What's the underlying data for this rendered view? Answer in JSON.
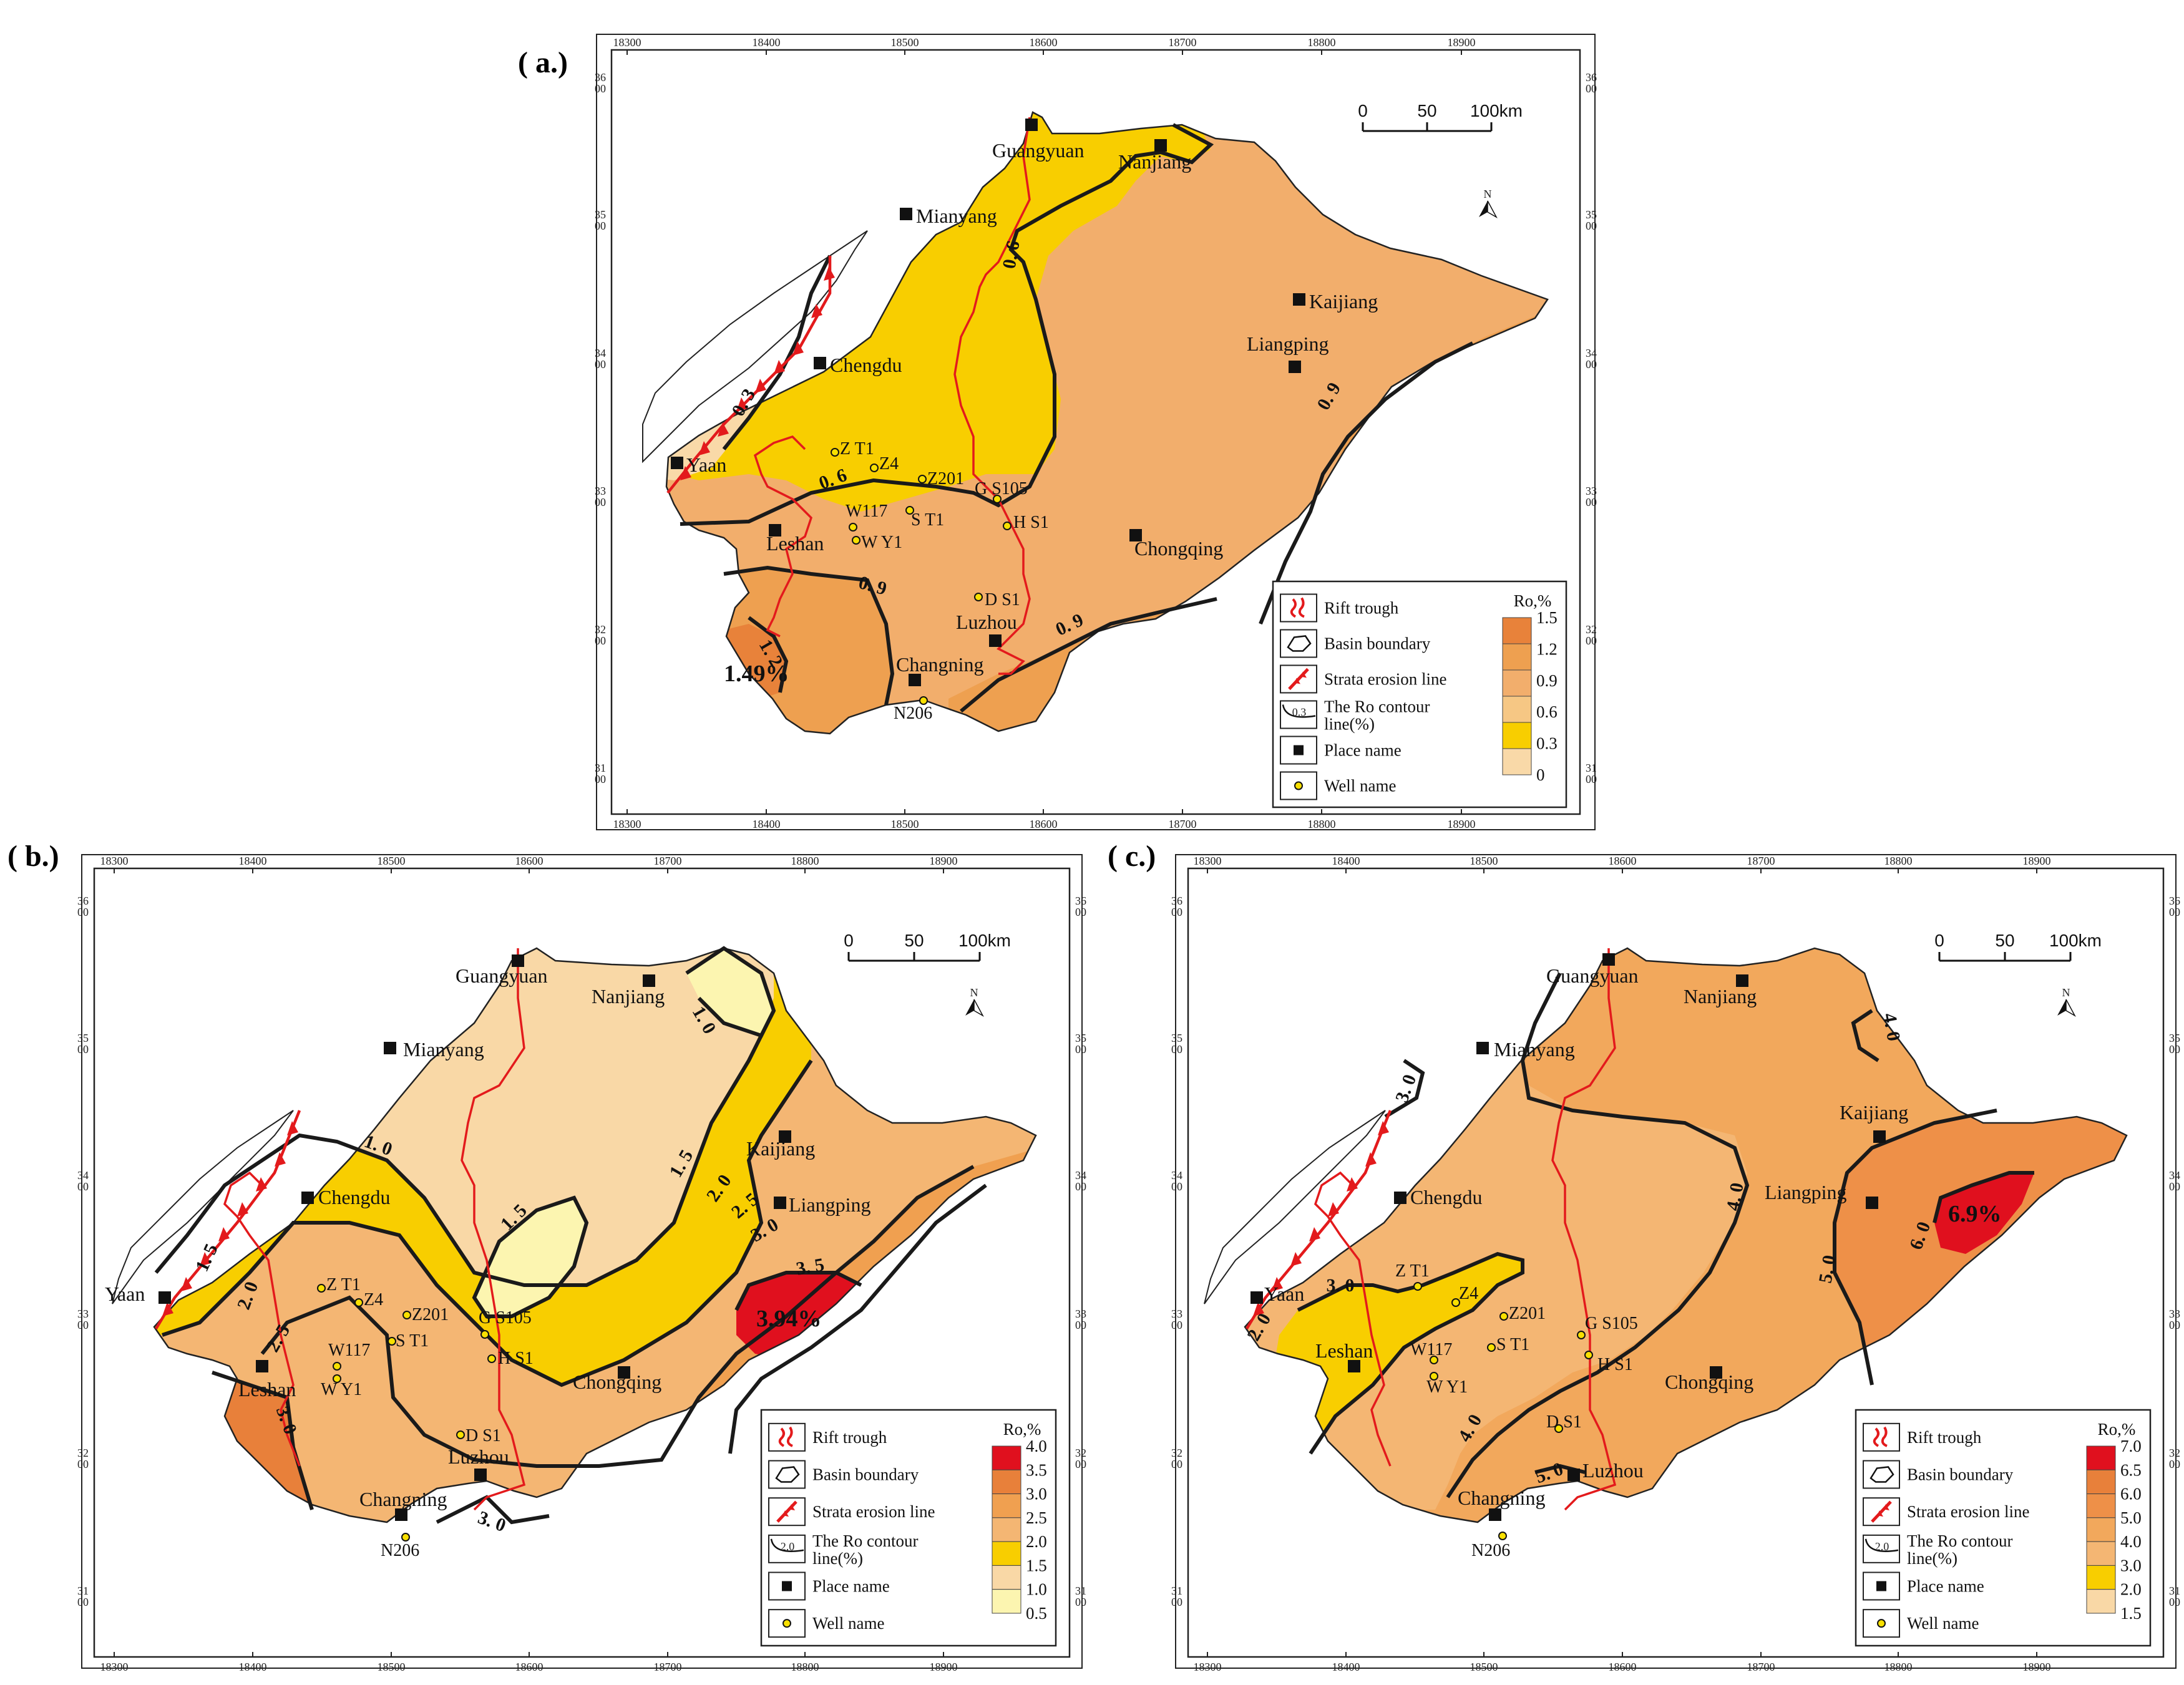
{
  "panels": [
    {
      "label": "( a.)",
      "x_ticks": [
        "18300",
        "18400",
        "18500",
        "18600",
        "18700",
        "18800",
        "18900"
      ],
      "y_ticks": [
        [
          "36",
          "00"
        ],
        [
          "35",
          "00"
        ],
        [
          "34",
          "00"
        ],
        [
          "33",
          "00"
        ],
        [
          "32",
          "00"
        ],
        [
          "31",
          "00"
        ]
      ],
      "scale": {
        "ticks": [
          "0",
          "50",
          "100km"
        ]
      },
      "north": "N",
      "places": [
        "Guangyuan",
        "Nanjiang",
        "Mianyang",
        "Kaijiang",
        "Chengdu",
        "Liangping",
        "Yaan",
        "Leshan",
        "Chongqing",
        "Luzhou",
        "Changning"
      ],
      "wells": [
        "Z T1",
        "Z4",
        "Z201",
        "G S105",
        "W117",
        "S T1",
        "W Y1",
        "H S1",
        "D S1",
        "N206"
      ],
      "contour_labels": [
        "0. 6",
        "0. 3",
        "0. 6",
        "0. 9",
        "0. 9",
        "0. 9",
        "1. 2"
      ],
      "max_value": "1.49%",
      "legend": {
        "items": [
          "Rift trough",
          "Basin boundary",
          "Strata erosion line",
          "The Ro contour line(%)",
          "Place name",
          "Well  name"
        ],
        "ro_title": "Ro,%",
        "ro_values": [
          "1.5",
          "1.2",
          "0.9",
          "0.6",
          "0.3",
          "0"
        ],
        "ro_colors": [
          "#E8823A",
          "#EEA050",
          "#F2AE6C",
          "#F6C784",
          "#F8CE00",
          "#F9D9A8"
        ],
        "contour_sample": "0.3"
      }
    },
    {
      "label": "( b.)",
      "x_ticks": [
        "18300",
        "18400",
        "18500",
        "18600",
        "18700",
        "18800",
        "18900"
      ],
      "y_ticks": [
        [
          "36",
          "00"
        ],
        [
          "35",
          "00"
        ],
        [
          "34",
          "00"
        ],
        [
          "33",
          "00"
        ],
        [
          "32",
          "00"
        ],
        [
          "31",
          "00"
        ]
      ],
      "scale": {
        "ticks": [
          "0",
          "50",
          "100km"
        ]
      },
      "north": "N",
      "places": [
        "Guangyuan",
        "Nanjiang",
        "Mianyang",
        "Kaijiang",
        "Chengdu",
        "Liangping",
        "Yaan",
        "Leshan",
        "Chongqing",
        "Luzhou",
        "Changning"
      ],
      "wells": [
        "Z T1",
        "Z4",
        "Z201",
        "G S105",
        "W117",
        "S T1",
        "W Y1",
        "H S1",
        "D S1",
        "N206"
      ],
      "contour_labels": [
        "1. 0",
        "1. 5",
        "1. 0",
        "1. 5",
        "1. 5",
        "2. 0",
        "2. 0",
        "2. 5",
        "2. 5",
        "3. 0",
        "3. 5",
        "3. 0",
        "3. 0"
      ],
      "max_value": "3.94%",
      "legend": {
        "items": [
          "Rift trough",
          "Basin boundary",
          "Strata erosion line",
          "The Ro contour line(%)",
          "Place name",
          "Well  name"
        ],
        "ro_title": "Ro,%",
        "ro_values": [
          "4.0",
          "3.5",
          "3.0",
          "2.5",
          "2.0",
          "1.5",
          "1.0",
          "0.5"
        ],
        "ro_colors": [
          "#E0101E",
          "#E8803A",
          "#F0A050",
          "#F4B673",
          "#F8CE00",
          "#F9D8A6",
          "#FCF5B0"
        ],
        "contour_sample": "2.0"
      }
    },
    {
      "label": "( c.)",
      "x_ticks": [
        "18300",
        "18400",
        "18500",
        "18600",
        "18700",
        "18800",
        "18900"
      ],
      "y_ticks": [
        [
          "36",
          "00"
        ],
        [
          "35",
          "00"
        ],
        [
          "34",
          "00"
        ],
        [
          "33",
          "00"
        ],
        [
          "32",
          "00"
        ],
        [
          "31",
          "00"
        ]
      ],
      "scale": {
        "ticks": [
          "0",
          "50",
          "100km"
        ]
      },
      "north": "N",
      "places": [
        "Guangyuan",
        "Nanjiang",
        "Mianyang",
        "Kaijiang",
        "Chengdu",
        "Liangping",
        "Yaan",
        "Leshan",
        "Chongqing",
        "Luzhou",
        "Changning"
      ],
      "wells": [
        "Z T1",
        "Z4",
        "Z201",
        "G S105",
        "W117",
        "S T1",
        "W Y1",
        "H S1",
        "D S1",
        "N206"
      ],
      "contour_labels": [
        "3. 0",
        "4. 0",
        "4. 0",
        "4. 0",
        "5. 0",
        "6. 0",
        "3. 0",
        "2. 0",
        "5. 0"
      ],
      "max_value": "6.9%",
      "legend": {
        "items": [
          "Rift trough",
          "Basin boundary",
          "Strata erosion line",
          "The Ro contour line(%)",
          "Place name",
          "Well  name"
        ],
        "ro_title": "Ro,%",
        "ro_values": [
          "7.0",
          "6.5",
          "6.0",
          "5.0",
          "4.0",
          "3.0",
          "2.0",
          "1.5"
        ],
        "ro_colors": [
          "#E0101E",
          "#E8803A",
          "#EE9048",
          "#F2A85C",
          "#F4B673",
          "#F8CE00",
          "#F9D8A6"
        ],
        "contour_sample": "2.0"
      }
    }
  ]
}
